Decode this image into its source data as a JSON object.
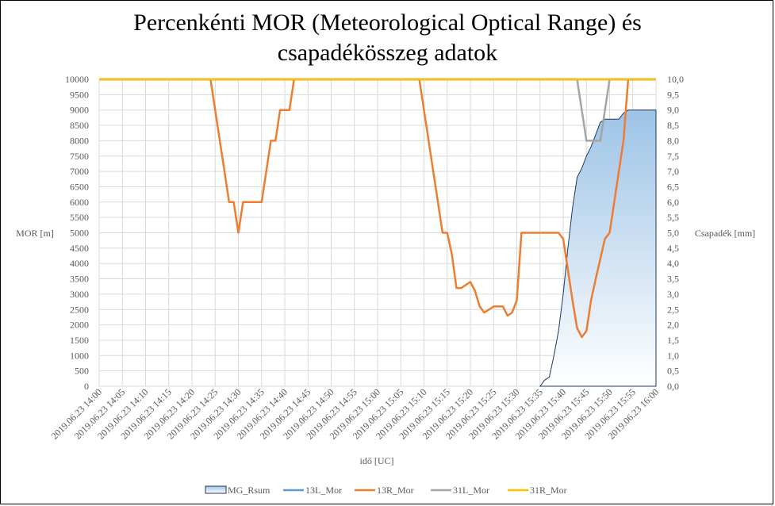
{
  "chart_data": {
    "type": "line",
    "title_line1": "Percenkénti MOR (Meteorological Optical Range) és",
    "title_line2": "csapadékösszeg  adatok",
    "xlabel": "idő [UC]",
    "ylabel_left": "MOR [m]",
    "ylabel_right": "Csapadék [mm]",
    "ylim_left": [
      0,
      10000
    ],
    "ylim_right": [
      0,
      10
    ],
    "xlim_minutes": [
      0,
      120
    ],
    "x_ticks": [
      "2019.06.23 14:00",
      "2019.06.23 14:05",
      "2019.06.23 14:10",
      "2019.06.23 14:15",
      "2019.06.23 14:20",
      "2019.06.23 14:25",
      "2019.06.23 14:30",
      "2019.06.23 14:35",
      "2019.06.23 14:40",
      "2019.06.23 14:45",
      "2019.06.23 14:50",
      "2019.06.23 14:55",
      "2019.06.23 15:00",
      "2019.06.23 15:05",
      "2019.06.23 15:10",
      "2019.06.23 15:15",
      "2019.06.23 15:20",
      "2019.06.23 15:25",
      "2019.06.23 15:30",
      "2019.06.23 15:35",
      "2019.06.23 15:40",
      "2019.06.23 15:45",
      "2019.06.23 15:50",
      "2019.06.23 15:55",
      "2019.06.23 16:00"
    ],
    "y_ticks_left": [
      "0",
      "500",
      "1000",
      "1500",
      "2000",
      "2500",
      "3000",
      "3500",
      "4000",
      "4500",
      "5000",
      "5500",
      "6000",
      "6500",
      "7000",
      "7500",
      "8000",
      "8500",
      "9000",
      "9500",
      "10000"
    ],
    "y_ticks_right": [
      "0,0",
      "0,5",
      "1,0",
      "1,5",
      "2,0",
      "2,5",
      "3,0",
      "3,5",
      "4,0",
      "4,5",
      "5,0",
      "5,5",
      "6,0",
      "6,5",
      "7,0",
      "7,5",
      "8,0",
      "8,5",
      "9,0",
      "9,5",
      "10,0"
    ],
    "grid": true,
    "legend_position": "bottom",
    "series": [
      {
        "name": "MG_Rsum",
        "axis": "right",
        "kind": "area",
        "color": "#1f3864",
        "fill_top": "#9dc3e6",
        "fill_bottom": "#ffffff",
        "x": [
          "2019.06.23 15:35",
          "2019.06.23 15:36",
          "2019.06.23 15:37",
          "2019.06.23 15:38",
          "2019.06.23 15:39",
          "2019.06.23 15:40",
          "2019.06.23 15:41",
          "2019.06.23 15:42",
          "2019.06.23 15:43",
          "2019.06.23 15:44",
          "2019.06.23 15:45",
          "2019.06.23 15:46",
          "2019.06.23 15:47",
          "2019.06.23 15:48",
          "2019.06.23 15:49",
          "2019.06.23 15:50",
          "2019.06.23 15:51",
          "2019.06.23 15:52",
          "2019.06.23 15:53",
          "2019.06.23 15:54",
          "2019.06.23 15:55",
          "2019.06.23 15:56",
          "2019.06.23 15:57",
          "2019.06.23 15:58",
          "2019.06.23 15:59",
          "2019.06.23 16:00",
          "2019.06.23 16:00"
        ],
        "values": [
          0,
          0.2,
          0.3,
          1.0,
          1.8,
          3.0,
          4.5,
          5.8,
          6.8,
          7.1,
          7.5,
          7.8,
          8.2,
          8.6,
          8.7,
          8.7,
          8.7,
          8.7,
          8.9,
          9.0,
          9.0,
          9.0,
          9.0,
          9.0,
          9.0,
          9.0,
          0
        ]
      },
      {
        "name": "13L_Mor",
        "axis": "left",
        "kind": "line",
        "color": "#5b9bd5",
        "x": [
          "2019.06.23 14:00",
          "2019.06.23 16:00"
        ],
        "values": [
          10000,
          10000
        ]
      },
      {
        "name": "13R_Mor",
        "axis": "left",
        "kind": "line",
        "color": "#ed7d31",
        "x": [
          "2019.06.23 14:00",
          "2019.06.23 14:24",
          "2019.06.23 14:26",
          "2019.06.23 14:27",
          "2019.06.23 14:28",
          "2019.06.23 14:29",
          "2019.06.23 14:30",
          "2019.06.23 14:31",
          "2019.06.23 14:35",
          "2019.06.23 14:37",
          "2019.06.23 14:38",
          "2019.06.23 14:39",
          "2019.06.23 14:41",
          "2019.06.23 14:42",
          "2019.06.23 15:09",
          "2019.06.23 15:14",
          "2019.06.23 15:15",
          "2019.06.23 15:16",
          "2019.06.23 15:17",
          "2019.06.23 15:18",
          "2019.06.23 15:20",
          "2019.06.23 15:21",
          "2019.06.23 15:22",
          "2019.06.23 15:23",
          "2019.06.23 15:24",
          "2019.06.23 15:25",
          "2019.06.23 15:27",
          "2019.06.23 15:28",
          "2019.06.23 15:29",
          "2019.06.23 15:30",
          "2019.06.23 15:31",
          "2019.06.23 15:32",
          "2019.06.23 15:39",
          "2019.06.23 15:40",
          "2019.06.23 15:42",
          "2019.06.23 15:43",
          "2019.06.23 15:44",
          "2019.06.23 15:45",
          "2019.06.23 15:46",
          "2019.06.23 15:47",
          "2019.06.23 15:49",
          "2019.06.23 15:50",
          "2019.06.23 15:53",
          "2019.06.23 15:54",
          "2019.06.23 16:00"
        ],
        "values": [
          10000,
          10000,
          8000,
          7000,
          6000,
          6000,
          5000,
          6000,
          6000,
          8000,
          8000,
          9000,
          9000,
          10000,
          10000,
          5000,
          5000,
          4300,
          3200,
          3200,
          3400,
          3100,
          2600,
          2400,
          2500,
          2600,
          2600,
          2300,
          2400,
          2800,
          5000,
          5000,
          5000,
          4800,
          2800,
          1900,
          1600,
          1800,
          2800,
          3500,
          4800,
          5000,
          8000,
          10000,
          10000
        ]
      },
      {
        "name": "31L_Mor",
        "axis": "left",
        "kind": "line",
        "color": "#a5a5a5",
        "x": [
          "2019.06.23 14:00",
          "2019.06.23 15:43",
          "2019.06.23 15:45",
          "2019.06.23 15:48",
          "2019.06.23 15:50",
          "2019.06.23 16:00"
        ],
        "values": [
          10000,
          10000,
          8000,
          8000,
          10000,
          10000
        ]
      },
      {
        "name": "31R_Mor",
        "axis": "left",
        "kind": "line",
        "color": "#ffc000",
        "x": [
          "2019.06.23 14:00",
          "2019.06.23 16:00"
        ],
        "values": [
          10000,
          10000
        ]
      }
    ]
  }
}
